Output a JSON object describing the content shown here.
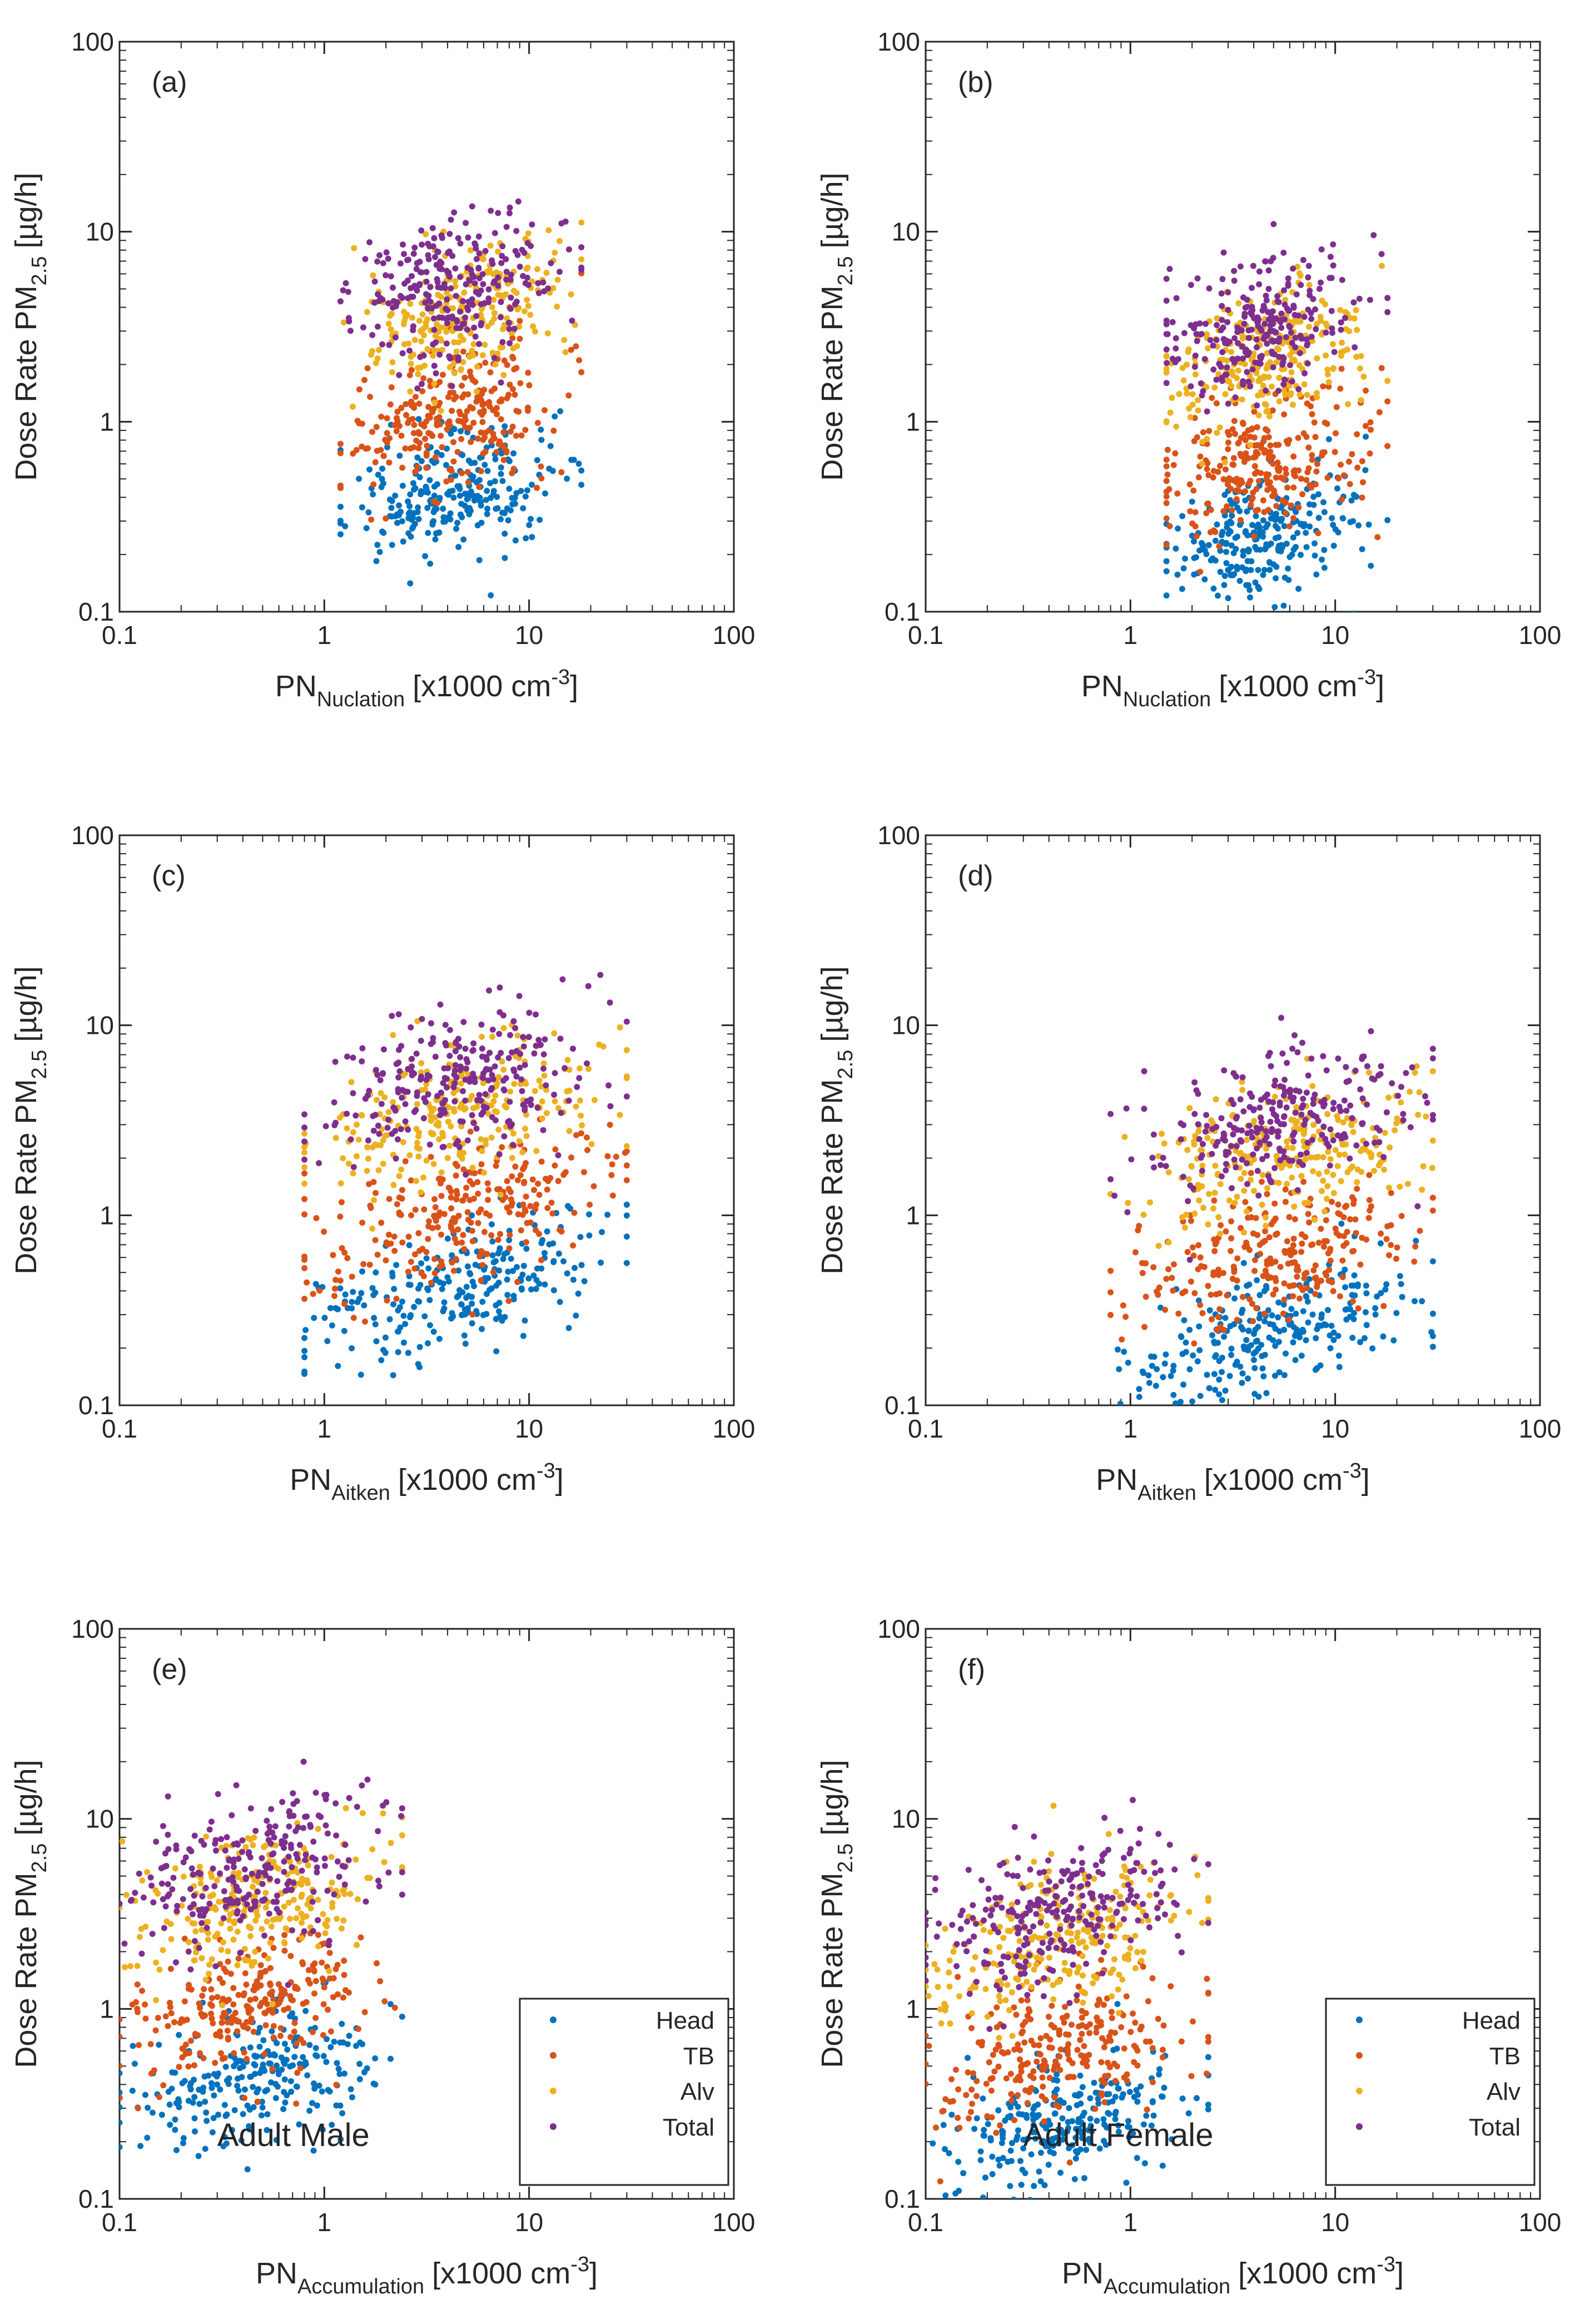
{
  "figure": {
    "y_axis_label": "Dose Rate PM2.5 [µg/h]",
    "x_unit": "[x1000 cm-3]"
  },
  "colors": {
    "Head": "#0072BD",
    "TB": "#D95319",
    "Alv": "#EDB120",
    "Total": "#7E2F8E",
    "axis": "#262626"
  },
  "chart_data": [
    {
      "type": "scatter",
      "panel": "(a)",
      "xscale": "log",
      "yscale": "log",
      "xlim": [
        0.1,
        100
      ],
      "ylim": [
        0.1,
        100
      ],
      "x_ticks": [
        "0.1",
        "1",
        "10",
        "100"
      ],
      "y_ticks": [
        "0.1",
        "1",
        "10",
        "100"
      ],
      "xlabel": "PN",
      "xlabel_sub": "Nuclation",
      "xlabel_unit": "[x1000 cm",
      "xlabel_sup": "-3",
      "xlabel_end": "]",
      "ylabel": "Dose Rate PM",
      "ylabel_sub": "2.5",
      "ylabel_unit": "[µg/h]",
      "annotation": "",
      "series": [
        {
          "name": "Head",
          "n": 260,
          "x_range": [
            1.2,
            18
          ],
          "x_center": 4.5,
          "y_median": 0.42,
          "y_spread": 0.16
        },
        {
          "name": "TB",
          "n": 260,
          "x_range": [
            1.2,
            18
          ],
          "x_center": 4.5,
          "y_median": 1.05,
          "y_spread": 0.18
        },
        {
          "name": "Alv",
          "n": 260,
          "x_range": [
            1.2,
            18
          ],
          "x_center": 4.5,
          "y_median": 3.6,
          "y_spread": 0.18
        },
        {
          "name": "Total",
          "n": 260,
          "x_range": [
            1.2,
            18
          ],
          "x_center": 4.5,
          "y_median": 5.2,
          "y_spread": 0.18
        }
      ]
    },
    {
      "type": "scatter",
      "panel": "(b)",
      "xscale": "log",
      "yscale": "log",
      "xlim": [
        0.1,
        100
      ],
      "ylim": [
        0.1,
        100
      ],
      "x_ticks": [
        "0.1",
        "1",
        "10",
        "100"
      ],
      "y_ticks": [
        "0.1",
        "1",
        "10",
        "100"
      ],
      "xlabel": "PN",
      "xlabel_sub": "Nuclation",
      "xlabel_unit": "[x1000 cm",
      "xlabel_sup": "-3",
      "xlabel_end": "]",
      "ylabel": "Dose Rate PM",
      "ylabel_sub": "2.5",
      "ylabel_unit": "[µg/h]",
      "annotation": "",
      "series": [
        {
          "name": "Head",
          "n": 260,
          "x_range": [
            1.5,
            18
          ],
          "x_center": 4.5,
          "y_median": 0.25,
          "y_spread": 0.16
        },
        {
          "name": "TB",
          "n": 260,
          "x_range": [
            1.5,
            18
          ],
          "x_center": 4.5,
          "y_median": 0.62,
          "y_spread": 0.18
        },
        {
          "name": "Alv",
          "n": 260,
          "x_range": [
            1.5,
            18
          ],
          "x_center": 4.5,
          "y_median": 2.2,
          "y_spread": 0.18
        },
        {
          "name": "Total",
          "n": 260,
          "x_range": [
            1.5,
            18
          ],
          "x_center": 4.5,
          "y_median": 3.2,
          "y_spread": 0.18
        }
      ]
    },
    {
      "type": "scatter",
      "panel": "(c)",
      "xscale": "log",
      "yscale": "log",
      "xlim": [
        0.1,
        100
      ],
      "ylim": [
        0.1,
        100
      ],
      "x_ticks": [
        "0.1",
        "1",
        "10",
        "100"
      ],
      "y_ticks": [
        "0.1",
        "1",
        "10",
        "100"
      ],
      "xlabel": "PN",
      "xlabel_sub": "Aitken",
      "xlabel_unit": "[x1000 cm",
      "xlabel_sup": "-3",
      "xlabel_end": "]",
      "ylabel": "Dose Rate PM",
      "ylabel_sub": "2.5",
      "ylabel_unit": "[µg/h]",
      "annotation": "",
      "series": [
        {
          "name": "Head",
          "n": 260,
          "x_range": [
            0.8,
            30
          ],
          "x_center": 5,
          "y_median": 0.42,
          "y_spread": 0.16
        },
        {
          "name": "TB",
          "n": 260,
          "x_range": [
            0.8,
            30
          ],
          "x_center": 5,
          "y_median": 1.05,
          "y_spread": 0.18
        },
        {
          "name": "Alv",
          "n": 260,
          "x_range": [
            0.8,
            30
          ],
          "x_center": 5,
          "y_median": 3.6,
          "y_spread": 0.18
        },
        {
          "name": "Total",
          "n": 260,
          "x_range": [
            0.8,
            30
          ],
          "x_center": 5,
          "y_median": 5.2,
          "y_spread": 0.18
        }
      ]
    },
    {
      "type": "scatter",
      "panel": "(d)",
      "xscale": "log",
      "yscale": "log",
      "xlim": [
        0.1,
        100
      ],
      "ylim": [
        0.1,
        100
      ],
      "x_ticks": [
        "0.1",
        "1",
        "10",
        "100"
      ],
      "y_ticks": [
        "0.1",
        "1",
        "10",
        "100"
      ],
      "xlabel": "PN",
      "xlabel_sub": "Aitken",
      "xlabel_unit": "[x1000 cm",
      "xlabel_sup": "-3",
      "xlabel_end": "]",
      "ylabel": "Dose Rate PM",
      "ylabel_sub": "2.5",
      "ylabel_unit": "[µg/h]",
      "annotation": "",
      "series": [
        {
          "name": "Head",
          "n": 260,
          "x_range": [
            0.8,
            30
          ],
          "x_center": 5,
          "y_median": 0.25,
          "y_spread": 0.16
        },
        {
          "name": "TB",
          "n": 260,
          "x_range": [
            0.8,
            30
          ],
          "x_center": 5,
          "y_median": 0.62,
          "y_spread": 0.18
        },
        {
          "name": "Alv",
          "n": 260,
          "x_range": [
            0.8,
            30
          ],
          "x_center": 5,
          "y_median": 2.2,
          "y_spread": 0.18
        },
        {
          "name": "Total",
          "n": 260,
          "x_range": [
            0.8,
            30
          ],
          "x_center": 5,
          "y_median": 3.2,
          "y_spread": 0.18
        }
      ]
    },
    {
      "type": "scatter",
      "panel": "(e)",
      "xscale": "log",
      "yscale": "log",
      "xlim": [
        0.1,
        100
      ],
      "ylim": [
        0.1,
        100
      ],
      "x_ticks": [
        "0.1",
        "1",
        "10",
        "100"
      ],
      "y_ticks": [
        "0.1",
        "1",
        "10",
        "100"
      ],
      "xlabel": "PN",
      "xlabel_sub": "Accumulation",
      "xlabel_unit": "[x1000 cm",
      "xlabel_sup": "-3",
      "xlabel_end": "]",
      "ylabel": "Dose Rate PM",
      "ylabel_sub": "2.5",
      "ylabel_unit": "[µg/h]",
      "annotation": "Adult Male",
      "legend": {
        "entries": [
          "Head",
          "TB",
          "Alv",
          "Total"
        ],
        "location": "bottom-right"
      },
      "series": [
        {
          "name": "Head",
          "n": 260,
          "x_range": [
            0.1,
            2.4
          ],
          "x_center": 0.45,
          "y_median": 0.42,
          "y_spread": 0.16
        },
        {
          "name": "TB",
          "n": 260,
          "x_range": [
            0.1,
            2.4
          ],
          "x_center": 0.45,
          "y_median": 1.05,
          "y_spread": 0.18
        },
        {
          "name": "Alv",
          "n": 260,
          "x_range": [
            0.1,
            2.4
          ],
          "x_center": 0.45,
          "y_median": 3.6,
          "y_spread": 0.18
        },
        {
          "name": "Total",
          "n": 260,
          "x_range": [
            0.1,
            2.4
          ],
          "x_center": 0.45,
          "y_median": 5.2,
          "y_spread": 0.18
        }
      ]
    },
    {
      "type": "scatter",
      "panel": "(f)",
      "xscale": "log",
      "yscale": "log",
      "xlim": [
        0.1,
        100
      ],
      "ylim": [
        0.1,
        100
      ],
      "x_ticks": [
        "0.1",
        "1",
        "10",
        "100"
      ],
      "y_ticks": [
        "0.1",
        "1",
        "10",
        "100"
      ],
      "xlabel": "PN",
      "xlabel_sub": "Accumulation",
      "xlabel_unit": "[x1000 cm",
      "xlabel_sup": "-3",
      "xlabel_end": "]",
      "ylabel": "Dose Rate PM",
      "ylabel_sub": "2.5",
      "ylabel_unit": "[µg/h]",
      "annotation": "Adult Female",
      "legend": {
        "entries": [
          "Head",
          "TB",
          "Alv",
          "Total"
        ],
        "location": "bottom-right"
      },
      "series": [
        {
          "name": "Head",
          "n": 260,
          "x_range": [
            0.1,
            2.4
          ],
          "x_center": 0.45,
          "y_median": 0.25,
          "y_spread": 0.16
        },
        {
          "name": "TB",
          "n": 260,
          "x_range": [
            0.1,
            2.4
          ],
          "x_center": 0.45,
          "y_median": 0.62,
          "y_spread": 0.18
        },
        {
          "name": "Alv",
          "n": 260,
          "x_range": [
            0.1,
            2.4
          ],
          "x_center": 0.45,
          "y_median": 2.2,
          "y_spread": 0.18
        },
        {
          "name": "Total",
          "n": 260,
          "x_range": [
            0.1,
            2.4
          ],
          "x_center": 0.45,
          "y_median": 3.2,
          "y_spread": 0.18
        }
      ]
    }
  ]
}
